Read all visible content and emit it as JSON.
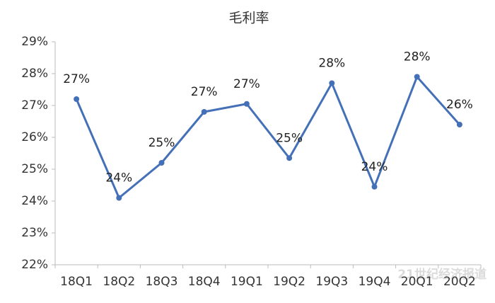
{
  "chart_data": {
    "type": "line",
    "title": "毛利率",
    "categories": [
      "18Q1",
      "18Q2",
      "18Q3",
      "18Q4",
      "19Q1",
      "19Q2",
      "19Q3",
      "19Q4",
      "20Q1",
      "20Q2"
    ],
    "values": [
      27.2,
      24.1,
      25.2,
      26.8,
      27.05,
      25.35,
      27.7,
      24.45,
      27.9,
      26.4
    ],
    "value_labels": [
      "27%",
      "24%",
      "25%",
      "27%",
      "27%",
      "25%",
      "28%",
      "24%",
      "28%",
      "26%"
    ],
    "color": "#4470b8",
    "ylim": [
      22,
      29
    ],
    "yticks": [
      {
        "value": 22,
        "label": "22%"
      },
      {
        "value": 23,
        "label": "23%"
      },
      {
        "value": 24,
        "label": "24%"
      },
      {
        "value": 25,
        "label": "25%"
      },
      {
        "value": 26,
        "label": "26%"
      },
      {
        "value": 27,
        "label": "27%"
      },
      {
        "value": 28,
        "label": "28%"
      },
      {
        "value": 29,
        "label": "29%"
      }
    ],
    "grid": false
  },
  "watermark": "21世纪经济报道"
}
